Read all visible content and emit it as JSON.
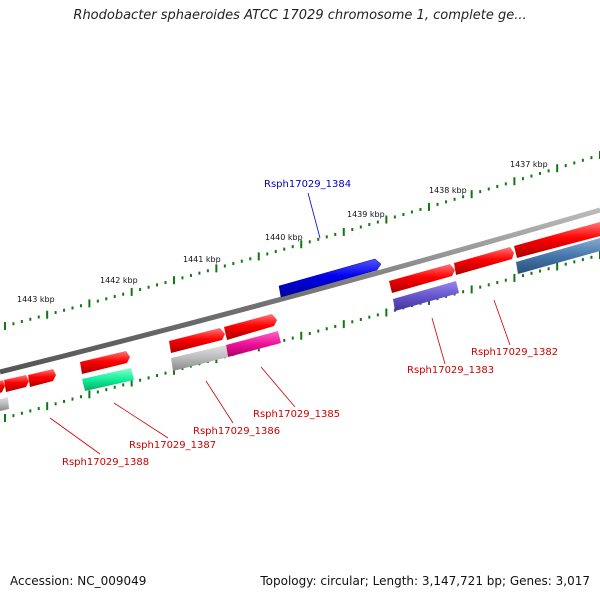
{
  "title": "Rhodobacter sphaeroides ATCC 17029 chromosome 1, complete ge...",
  "footer": {
    "accession": "Accession: NC_009049",
    "summary": "Topology: circular; Length: 3,147,721 bp; Genes: 3,017"
  },
  "scale": {
    "ticks": [
      "1437 kbp",
      "1438 kbp",
      "1439 kbp",
      "1440 kbp",
      "1441 kbp",
      "1442 kbp",
      "1443 kbp"
    ]
  },
  "genes": [
    {
      "id": "Rsph17029_1382",
      "color": "#cc0000"
    },
    {
      "id": "Rsph17029_1383",
      "color": "#cc0000"
    },
    {
      "id": "Rsph17029_1384",
      "color": "#0000cc"
    },
    {
      "id": "Rsph17029_1385",
      "color": "#cc0000"
    },
    {
      "id": "Rsph17029_1386",
      "color": "#cc0000"
    },
    {
      "id": "Rsph17029_1387",
      "color": "#cc0000"
    },
    {
      "id": "Rsph17029_1388",
      "color": "#cc0000"
    }
  ],
  "colors": {
    "forward": "#ff0000",
    "reverse_cog_blue": "#4477aa",
    "reverse_cog_purple": "#6655cc",
    "reverse_cog_magenta": "#ee1199",
    "reverse_cog_green": "#11ee99",
    "reverse_cog_gray": "#bbbbbb",
    "highlight": "#0000ee",
    "backbone": "#888888",
    "tick": "#117711"
  }
}
